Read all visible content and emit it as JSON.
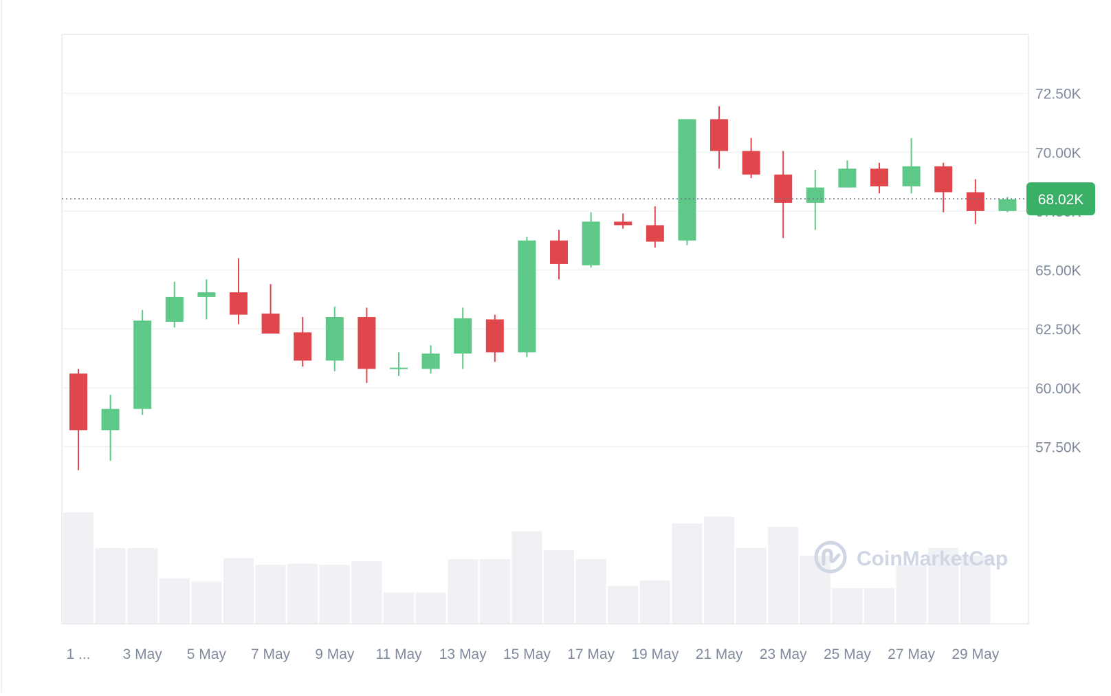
{
  "watermark": {
    "text": "CoinMarketCap",
    "icon": "coinmarketcap-logo-icon"
  },
  "current_price": {
    "label": "68.02K",
    "value": 68020
  },
  "colors": {
    "up": "#5dc887",
    "down": "#e0474c",
    "volume": "#eff1f5",
    "grid": "#eff2f5",
    "badge": "#3ab067",
    "axis_text": "#808a9d"
  },
  "chart_data": {
    "type": "candlestick",
    "title": "",
    "xlabel": "",
    "ylabel": "",
    "ylim": [
      54300,
      75000
    ],
    "y_ticks": [
      {
        "value": 57500,
        "label": "57.50K"
      },
      {
        "value": 60000,
        "label": "60.00K"
      },
      {
        "value": 62500,
        "label": "62.50K"
      },
      {
        "value": 65000,
        "label": "65.00K"
      },
      {
        "value": 67500,
        "label": "67.50K"
      },
      {
        "value": 70000,
        "label": "70.00K"
      },
      {
        "value": 72500,
        "label": "72.50K"
      }
    ],
    "x_ticks": [
      {
        "index": 0,
        "label": "1 ..."
      },
      {
        "index": 2,
        "label": "3 May"
      },
      {
        "index": 4,
        "label": "5 May"
      },
      {
        "index": 6,
        "label": "7 May"
      },
      {
        "index": 8,
        "label": "9 May"
      },
      {
        "index": 10,
        "label": "11 May"
      },
      {
        "index": 12,
        "label": "13 May"
      },
      {
        "index": 14,
        "label": "15 May"
      },
      {
        "index": 16,
        "label": "17 May"
      },
      {
        "index": 18,
        "label": "19 May"
      },
      {
        "index": 20,
        "label": "21 May"
      },
      {
        "index": 22,
        "label": "23 May"
      },
      {
        "index": 24,
        "label": "25 May"
      },
      {
        "index": 26,
        "label": "27 May"
      },
      {
        "index": 28,
        "label": "29 May"
      }
    ],
    "grid": true,
    "volume_unit": "relative",
    "candles": [
      {
        "date": "1 May",
        "open": 60600,
        "high": 60800,
        "low": 56500,
        "close": 58200,
        "volume": 100
      },
      {
        "date": "2 May",
        "open": 58200,
        "high": 59700,
        "low": 56900,
        "close": 59100,
        "volume": 68
      },
      {
        "date": "3 May",
        "open": 59100,
        "high": 63300,
        "low": 58850,
        "close": 62850,
        "volume": 68
      },
      {
        "date": "4 May",
        "open": 62800,
        "high": 64500,
        "low": 62550,
        "close": 63850,
        "volume": 41
      },
      {
        "date": "5 May",
        "open": 63850,
        "high": 64600,
        "low": 62900,
        "close": 64050,
        "volume": 38
      },
      {
        "date": "6 May",
        "open": 64050,
        "high": 65500,
        "low": 62700,
        "close": 63100,
        "volume": 59
      },
      {
        "date": "7 May",
        "open": 63150,
        "high": 64400,
        "low": 62300,
        "close": 62300,
        "volume": 53
      },
      {
        "date": "8 May",
        "open": 62350,
        "high": 63000,
        "low": 60900,
        "close": 61150,
        "volume": 54
      },
      {
        "date": "9 May",
        "open": 61150,
        "high": 63450,
        "low": 60700,
        "close": 63000,
        "volume": 53
      },
      {
        "date": "10 May",
        "open": 63000,
        "high": 63400,
        "low": 60200,
        "close": 60800,
        "volume": 56
      },
      {
        "date": "11 May",
        "open": 60800,
        "high": 61500,
        "low": 60500,
        "close": 60850,
        "volume": 28
      },
      {
        "date": "12 May",
        "open": 60800,
        "high": 61800,
        "low": 60600,
        "close": 61450,
        "volume": 28
      },
      {
        "date": "13 May",
        "open": 61450,
        "high": 63400,
        "low": 60800,
        "close": 62950,
        "volume": 58
      },
      {
        "date": "14 May",
        "open": 62900,
        "high": 63100,
        "low": 61100,
        "close": 61500,
        "volume": 58
      },
      {
        "date": "15 May",
        "open": 61500,
        "high": 66400,
        "low": 61300,
        "close": 66250,
        "volume": 83
      },
      {
        "date": "16 May",
        "open": 66250,
        "high": 66700,
        "low": 64600,
        "close": 65250,
        "volume": 66
      },
      {
        "date": "17 May",
        "open": 65200,
        "high": 67450,
        "low": 65100,
        "close": 67050,
        "volume": 58
      },
      {
        "date": "18 May",
        "open": 67050,
        "high": 67400,
        "low": 66750,
        "close": 66900,
        "volume": 34
      },
      {
        "date": "19 May",
        "open": 66900,
        "high": 67700,
        "low": 65950,
        "close": 66200,
        "volume": 39
      },
      {
        "date": "20 May",
        "open": 66250,
        "high": 71400,
        "low": 66050,
        "close": 71400,
        "volume": 90
      },
      {
        "date": "21 May",
        "open": 71400,
        "high": 71950,
        "low": 69300,
        "close": 70050,
        "volume": 96
      },
      {
        "date": "22 May",
        "open": 70050,
        "high": 70600,
        "low": 68900,
        "close": 69050,
        "volume": 68
      },
      {
        "date": "23 May",
        "open": 69050,
        "high": 70050,
        "low": 66350,
        "close": 67850,
        "volume": 87
      },
      {
        "date": "24 May",
        "open": 67850,
        "high": 69250,
        "low": 66700,
        "close": 68500,
        "volume": 61
      },
      {
        "date": "25 May",
        "open": 68500,
        "high": 69650,
        "low": 68500,
        "close": 69300,
        "volume": 32
      },
      {
        "date": "26 May",
        "open": 69300,
        "high": 69550,
        "low": 68250,
        "close": 68550,
        "volume": 32
      },
      {
        "date": "27 May",
        "open": 68550,
        "high": 70600,
        "low": 68250,
        "close": 69400,
        "volume": 53
      },
      {
        "date": "28 May",
        "open": 69400,
        "high": 69550,
        "low": 67450,
        "close": 68300,
        "volume": 68
      },
      {
        "date": "29 May",
        "open": 68300,
        "high": 68850,
        "low": 66950,
        "close": 67500,
        "volume": 61
      },
      {
        "date": "30 May",
        "open": 67500,
        "high": 68100,
        "low": 67450,
        "close": 68000,
        "volume": 0
      }
    ]
  }
}
